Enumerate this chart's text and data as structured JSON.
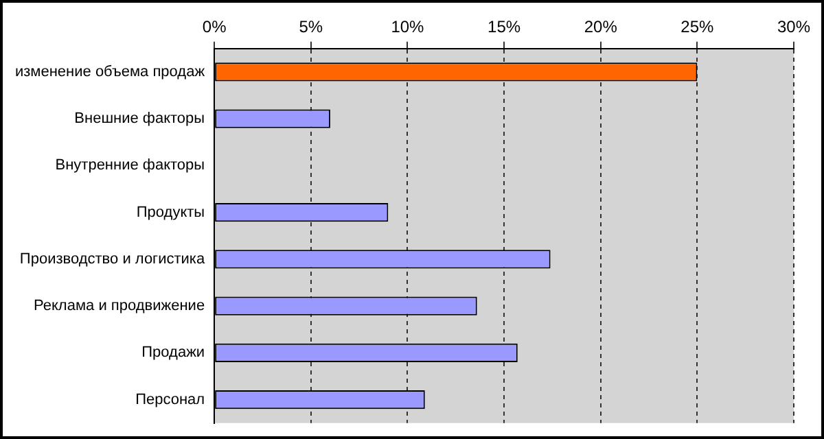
{
  "chart_data": {
    "type": "bar",
    "orientation": "horizontal",
    "categories": [
      "изменение объема продаж",
      "Внешние факторы",
      "Внутренние факторы",
      "Продукты",
      "Производство и логистика",
      "Реклама и продвижение",
      "Продажи",
      "Персонал"
    ],
    "values": [
      25,
      6,
      0,
      9,
      17.4,
      13.6,
      15.7,
      10.9
    ],
    "colors": [
      "#ff6600",
      "#9999ff",
      "#9999ff",
      "#9999ff",
      "#9999ff",
      "#9999ff",
      "#9999ff",
      "#9999ff"
    ],
    "xlim": [
      0,
      30
    ],
    "xticks": [
      {
        "value": 0,
        "label": "0%"
      },
      {
        "value": 5,
        "label": "5%"
      },
      {
        "value": 10,
        "label": "10%"
      },
      {
        "value": 15,
        "label": "15%"
      },
      {
        "value": 20,
        "label": "20%"
      },
      {
        "value": 25,
        "label": "25%"
      },
      {
        "value": 30,
        "label": "30%"
      }
    ],
    "grid": "x",
    "legend": false
  }
}
